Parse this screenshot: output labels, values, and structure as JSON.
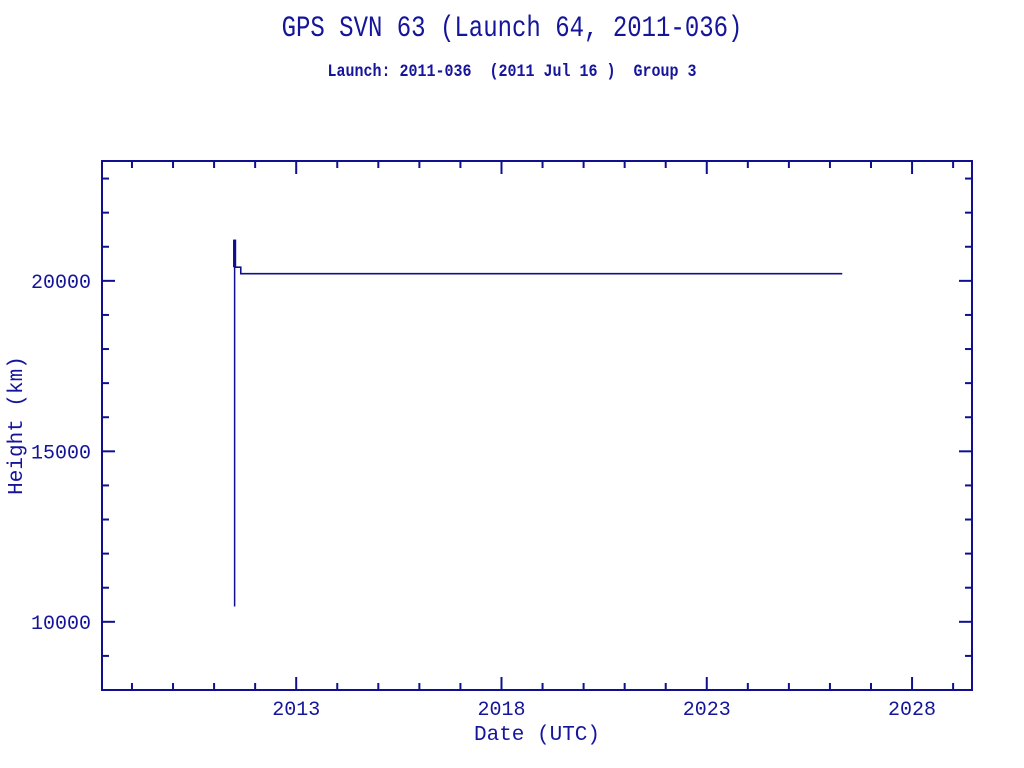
{
  "chart_data": {
    "type": "line",
    "title": "GPS SVN 63 (Launch 64, 2011-036)",
    "subtitle": "Launch: 2011-036  (2011 Jul 16 )  Group 3",
    "xlabel": "Date (UTC)",
    "ylabel": "Height (km)",
    "xlim": [
      2008.27,
      2029.46
    ],
    "ylim": [
      8000,
      23515
    ],
    "x_major_ticks": [
      2013,
      2018,
      2023,
      2028
    ],
    "x_minor_step": 1,
    "y_major_ticks": [
      10000,
      15000,
      20000
    ],
    "y_minor_step": 1000,
    "grid": false,
    "legend": "none",
    "colors": {
      "line": "#10108e",
      "axis": "#10108e",
      "text": "#15159b",
      "background": "#ffffff"
    },
    "series": [
      {
        "name": "launch-ascent-thin",
        "width": 1.5,
        "points": [
          [
            2011.5,
            10450
          ],
          [
            2011.5,
            21210
          ]
        ]
      },
      {
        "name": "launch-ascent-thick",
        "width": 3.2,
        "points": [
          [
            2011.5,
            20400
          ],
          [
            2011.5,
            21210
          ]
        ]
      },
      {
        "name": "operational-height",
        "width": 1.6,
        "points": [
          [
            2011.5,
            20400
          ],
          [
            2011.65,
            20400
          ],
          [
            2011.65,
            20210
          ],
          [
            2026.3,
            20210
          ]
        ]
      }
    ],
    "annotations": {
      "steady_height_km": 20210,
      "data_start_year": 2011.5,
      "data_end_year": 2026.3
    }
  }
}
